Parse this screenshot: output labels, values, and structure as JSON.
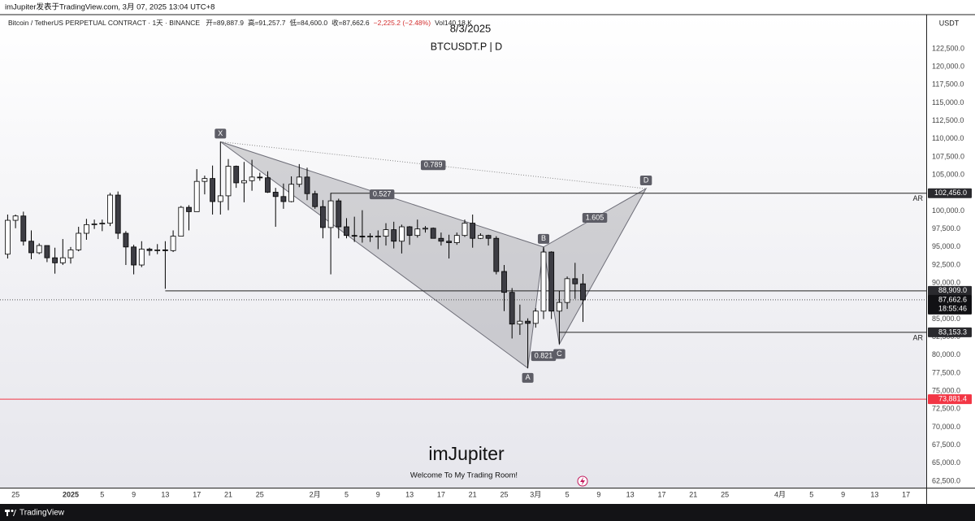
{
  "chart_data": {
    "type": "candlestick",
    "page_header": "imJupiter发表于TradingView.com, 3月 07, 2025 13:04 UTC+8",
    "symbol": "Bitcoin / TetherUS PERPETUAL CONTRACT · 1天 · BINANCE",
    "ohlc_legend": [
      "开=89,887.9",
      "高=91,257.7",
      "低=84,600.0",
      "收=87,662.6",
      "−2,225.2 (−2.48%)",
      "Vol140.18 K"
    ],
    "title": "8/3/2025",
    "subtitle": "BTCUSDT.P | D",
    "watermark": "imJupiter",
    "watermark_sub": "Welcome To My Trading Room!",
    "y_axis_label": "USDT",
    "brand": "TradingView",
    "up_color": "#ffffff",
    "down_color": "#3d3d44",
    "border_color": "#000000",
    "grid": false,
    "xlim": [
      -8.97,
      108.56
    ],
    "ylim": [
      61600,
      127240
    ],
    "xticks": [
      {
        "value": -7,
        "label": "25"
      },
      {
        "value": 0,
        "label": "2025"
      },
      {
        "value": 4,
        "label": "5"
      },
      {
        "value": 8,
        "label": "9"
      },
      {
        "value": 12,
        "label": "13"
      },
      {
        "value": 16,
        "label": "17"
      },
      {
        "value": 20,
        "label": "21"
      },
      {
        "value": 24,
        "label": "25"
      },
      {
        "value": 31,
        "label": "2月"
      },
      {
        "value": 35,
        "label": "5"
      },
      {
        "value": 39,
        "label": "9"
      },
      {
        "value": 43,
        "label": "13"
      },
      {
        "value": 47,
        "label": "17"
      },
      {
        "value": 51,
        "label": "21"
      },
      {
        "value": 55,
        "label": "25"
      },
      {
        "value": 59,
        "label": "3月"
      },
      {
        "value": 63,
        "label": "5"
      },
      {
        "value": 67,
        "label": "9"
      },
      {
        "value": 71,
        "label": "13"
      },
      {
        "value": 75,
        "label": "17"
      },
      {
        "value": 79,
        "label": "21"
      },
      {
        "value": 83,
        "label": "25"
      },
      {
        "value": 90,
        "label": "4月"
      },
      {
        "value": 94,
        "label": "5"
      },
      {
        "value": 98,
        "label": "9"
      },
      {
        "value": 102,
        "label": "13"
      },
      {
        "value": 106,
        "label": "17"
      }
    ],
    "yticks": [
      {
        "value": 62500,
        "label": "62,500.0"
      },
      {
        "value": 65000,
        "label": "65,000.0"
      },
      {
        "value": 67500,
        "label": "67,500.0"
      },
      {
        "value": 70000,
        "label": "70,000.0"
      },
      {
        "value": 72500,
        "label": "72,500.0"
      },
      {
        "value": 75000,
        "label": "75,000.0"
      },
      {
        "value": 77500,
        "label": "77,500.0"
      },
      {
        "value": 80000,
        "label": "80,000.0"
      },
      {
        "value": 82500,
        "label": "82,500.0"
      },
      {
        "value": 85000,
        "label": "85,000.0"
      },
      {
        "value": 87500,
        "label": "87,500.0"
      },
      {
        "value": 90000,
        "label": "90,000.0"
      },
      {
        "value": 92500,
        "label": "92,500.0"
      },
      {
        "value": 95000,
        "label": "95,000.0"
      },
      {
        "value": 97500,
        "label": "97,500.0"
      },
      {
        "value": 100000,
        "label": "100,000.0"
      },
      {
        "value": 102500,
        "label": "102,500.0"
      },
      {
        "value": 105000,
        "label": "105,000.0"
      },
      {
        "value": 107500,
        "label": "107,500.0"
      },
      {
        "value": 110000,
        "label": "110,000.0"
      },
      {
        "value": 112500,
        "label": "112,500.0"
      },
      {
        "value": 115000,
        "label": "115,000.0"
      },
      {
        "value": 117500,
        "label": "117,500.0"
      },
      {
        "value": 120000,
        "label": "120,000.0"
      },
      {
        "value": 122500,
        "label": "122,500.0"
      }
    ],
    "x": [
      -8,
      -7,
      -6,
      -5,
      -4,
      -3,
      -2,
      -1,
      0,
      1,
      2,
      3,
      4,
      5,
      6,
      7,
      8,
      9,
      10,
      11,
      12,
      13,
      14,
      15,
      16,
      17,
      18,
      19,
      20,
      21,
      22,
      23,
      24,
      25,
      26,
      27,
      28,
      29,
      30,
      31,
      32,
      33,
      34,
      35,
      36,
      37,
      38,
      39,
      40,
      41,
      42,
      43,
      44,
      45,
      46,
      47,
      48,
      49,
      50,
      51,
      52,
      53,
      54,
      55,
      56,
      57,
      58,
      59,
      60,
      61,
      62,
      63,
      64,
      65
    ],
    "open": [
      94000,
      98700,
      99300,
      95800,
      94200,
      95200,
      93500,
      92800,
      93500,
      94600,
      96900,
      98100,
      98200,
      98300,
      102200,
      96900,
      95000,
      92500,
      94700,
      94500,
      94600,
      94500,
      96500,
      100500,
      99900,
      104100,
      104500,
      101300,
      102100,
      106200,
      103900,
      104200,
      104700,
      104600,
      102600,
      102000,
      101300,
      103700,
      104700,
      102400,
      100600,
      97700,
      101400,
      97800,
      96600,
      96500,
      96400,
      96500,
      96500,
      97400,
      95800,
      97800,
      96600,
      97500,
      97600,
      96200,
      95800,
      95600,
      96600,
      98300,
      96200,
      96600,
      96200,
      91600,
      88700,
      84300,
      84700,
      84400,
      86100,
      94300,
      86100,
      87300,
      90600,
      89887.9
    ],
    "high": [
      99500,
      99500,
      99900,
      97300,
      95500,
      95200,
      94900,
      96100,
      95000,
      97800,
      98900,
      98800,
      98800,
      102500,
      102700,
      97200,
      95300,
      95800,
      94900,
      95400,
      95800,
      97300,
      100700,
      100800,
      105800,
      104900,
      106300,
      109600,
      107200,
      106300,
      106800,
      107100,
      105300,
      105500,
      103200,
      103800,
      104800,
      106500,
      106000,
      102800,
      101500,
      102500,
      101700,
      99000,
      99200,
      100100,
      96900,
      97300,
      98300,
      98500,
      98100,
      97900,
      98800,
      97900,
      97700,
      97000,
      96700,
      97000,
      98800,
      99500,
      96900,
      96700,
      96500,
      92500,
      89300,
      87000,
      85100,
      86500,
      95000,
      94400,
      88900,
      90900,
      92800,
      91257.7
    ],
    "low": [
      93400,
      97600,
      95200,
      93300,
      94000,
      92900,
      91300,
      92500,
      92700,
      94400,
      96000,
      97500,
      97200,
      97900,
      96100,
      92500,
      91200,
      92200,
      93800,
      94000,
      89200,
      94300,
      96500,
      97300,
      99900,
      102300,
      99500,
      99500,
      100100,
      103200,
      101200,
      102800,
      104200,
      102500,
      97800,
      100300,
      101200,
      103300,
      101500,
      100300,
      96200,
      91200,
      96200,
      96200,
      95700,
      95600,
      95700,
      94700,
      95200,
      94800,
      94100,
      95300,
      96300,
      97000,
      96200,
      95200,
      93400,
      95300,
      96400,
      94900,
      96100,
      95200,
      91200,
      86100,
      82300,
      82800,
      78200,
      83800,
      85000,
      85000,
      81500,
      86400,
      87800,
      84600
    ],
    "close": [
      98700,
      99300,
      95800,
      94200,
      95200,
      93500,
      92800,
      93500,
      94600,
      96900,
      98100,
      98200,
      98300,
      102200,
      96900,
      95000,
      92500,
      94700,
      94500,
      94600,
      94500,
      96500,
      100500,
      99900,
      104100,
      104500,
      101300,
      102100,
      106200,
      103900,
      104200,
      104700,
      104600,
      102600,
      102000,
      101300,
      103700,
      104700,
      102400,
      100600,
      97700,
      101400,
      97800,
      96600,
      96500,
      96400,
      96500,
      96500,
      97400,
      95800,
      97800,
      96600,
      97500,
      97600,
      96200,
      95800,
      95600,
      96600,
      98300,
      96200,
      96600,
      96200,
      91600,
      88700,
      84300,
      84700,
      84400,
      86100,
      94300,
      86100,
      87300,
      90600,
      89887.9,
      87662.6
    ],
    "levels": [
      {
        "value": 102456,
        "label": "102,456.0",
        "from": 33,
        "tag": "AR"
      },
      {
        "value": 88909,
        "label": "88,909.0",
        "from": 12
      },
      {
        "value": 83153.3,
        "label": "83,153.3",
        "from": 62,
        "tag": "AR"
      },
      {
        "value": 73881.4,
        "label": "73,881.4",
        "color": "#f23645"
      }
    ],
    "last_price": {
      "value": 87662.6,
      "label": "87,662.6",
      "countdown": "18:55:46"
    },
    "pattern": {
      "points": [
        {
          "label": "X",
          "x": 19,
          "y": 109600
        },
        {
          "label": "A",
          "x": 58,
          "y": 78200
        },
        {
          "label": "B",
          "x": 60,
          "y": 95000
        },
        {
          "label": "C",
          "x": 62,
          "y": 81500
        },
        {
          "label": "D",
          "x": 73,
          "y": 103100
        }
      ],
      "ratios": [
        0.789,
        0.527,
        1.605,
        0.821
      ]
    }
  }
}
